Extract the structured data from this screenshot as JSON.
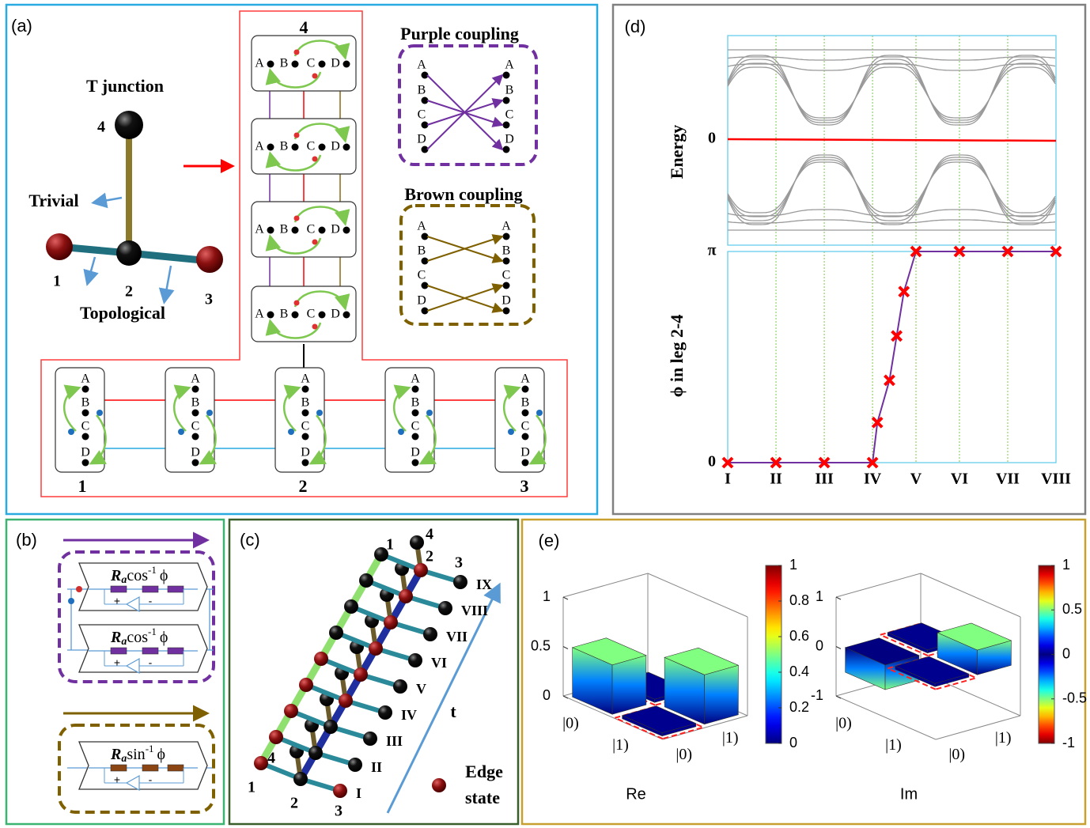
{
  "panel_a": {
    "label": "(a)",
    "title": "T junction",
    "legs": [
      "1",
      "2",
      "3",
      "4"
    ],
    "trivial": "Trivial",
    "topological": "Topological",
    "sites": [
      "A",
      "B",
      "C",
      "D"
    ],
    "purple_coupling": "Purple coupling",
    "brown_coupling": "Brown coupling"
  },
  "panel_b": {
    "label": "(b)",
    "resistance": "R",
    "subscript": "a",
    "cos": "cos",
    "sin": "sin",
    "inverse": "-1",
    "phi": "ϕ",
    "plus": "+",
    "minus": "-"
  },
  "panel_c": {
    "label": "(c)",
    "legs": [
      "1",
      "2",
      "3",
      "4"
    ],
    "steps": [
      "I",
      "II",
      "III",
      "IV",
      "V",
      "VI",
      "VII",
      "VIII",
      "IX"
    ],
    "time": "t",
    "legend": [
      "Edge",
      "state"
    ]
  },
  "panel_d": {
    "label": "(d)",
    "energy_label": "Energy",
    "energy_tick": 0
  },
  "chart_data": {
    "type": "line",
    "ylabel": "ϕ in leg 2-4",
    "x": [
      1,
      2,
      3,
      4,
      4.1,
      4.35,
      4.5,
      4.65,
      4.9,
      5.8,
      6.8,
      7.8
    ],
    "values": [
      0,
      0,
      0,
      0,
      0.19,
      0.39,
      0.6,
      0.81,
      1,
      1,
      1,
      1
    ],
    "color": "#7030a0",
    "marker_color": "#ff0000",
    "xlim": [
      1,
      7.8
    ],
    "ylim": [
      0,
      1
    ],
    "xticks": [
      {
        "value": 1,
        "label": "I"
      },
      {
        "value": 2,
        "label": "II"
      },
      {
        "value": 3,
        "label": "III"
      },
      {
        "value": 4,
        "label": "IV"
      },
      {
        "value": 4.9,
        "label": "V"
      },
      {
        "value": 5.8,
        "label": "VI"
      },
      {
        "value": 6.8,
        "label": "VII"
      },
      {
        "value": 7.8,
        "label": "VIII"
      }
    ],
    "yticks": [
      0,
      {
        "value": 1,
        "label": "π"
      }
    ],
    "grid": true
  },
  "panel_e": {
    "label": "(e)",
    "plots": [
      {
        "name": "Re",
        "zlim": [
          0,
          1
        ],
        "zticks": [
          0,
          0.5,
          1
        ],
        "kets": [
          "|0)",
          "|1)",
          "|0)",
          "|1)"
        ],
        "values": [
          0.5,
          0,
          0,
          0.5
        ],
        "colorbar_ticks": [
          0,
          0.2,
          0.4,
          0.6,
          0.8,
          1
        ]
      },
      {
        "name": "Im",
        "zlim": [
          -1,
          1
        ],
        "zticks": [
          -1,
          0,
          1
        ],
        "kets": [
          "|0)",
          "|1)",
          "|0)",
          "|1)"
        ],
        "values": [
          -0.5,
          0,
          0,
          0.5
        ],
        "colorbar_ticks": [
          -1,
          -0.5,
          0,
          0.5,
          1
        ]
      }
    ]
  }
}
